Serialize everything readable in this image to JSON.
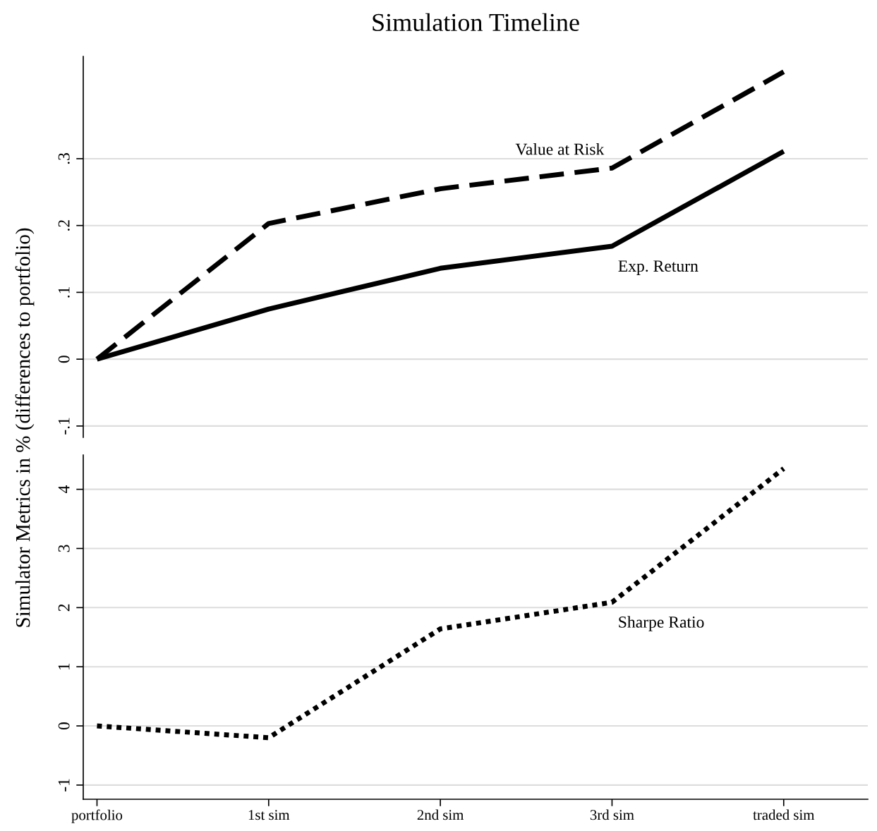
{
  "chart_data": [
    {
      "type": "line",
      "title": "Simulation Timeline",
      "ylabel": "Simulator Metrics in % (differences to portfolio)",
      "categories": [
        null,
        null,
        null,
        null,
        null
      ],
      "series": [
        {
          "name": "Value at Risk",
          "color": "#000000",
          "line_style": "dashed",
          "values": [
            0,
            0.203,
            0.255,
            0.286,
            0.43
          ]
        },
        {
          "name": "Exp. Return",
          "color": "#000000",
          "line_style": "solid",
          "values": [
            0,
            0.075,
            0.136,
            0.169,
            0.311
          ]
        }
      ],
      "ylim": [
        -0.117,
        0.453
      ],
      "yticks": [
        {
          "value": -0.1,
          "label": "-.1"
        },
        0,
        {
          "value": 0.1,
          "label": ".1"
        },
        {
          "value": 0.2,
          "label": ".2"
        },
        {
          "value": 0.3,
          "label": ".3"
        }
      ],
      "grid": "y",
      "tick_labels": "y",
      "legend": false
    },
    {
      "type": "line",
      "categories": [
        "portfolio",
        "1st sim",
        "2nd sim",
        "3rd sim",
        "traded sim"
      ],
      "series": [
        {
          "name": "Sharpe Ratio",
          "color": "#000000",
          "line_style": "dotted",
          "values": [
            0,
            -0.2,
            1.64,
            2.09,
            4.35
          ]
        }
      ],
      "ylim": [
        -1.24,
        4.58
      ],
      "yticks": [
        -1,
        0,
        1,
        2,
        3,
        4
      ],
      "grid": "y",
      "legend": false
    }
  ]
}
